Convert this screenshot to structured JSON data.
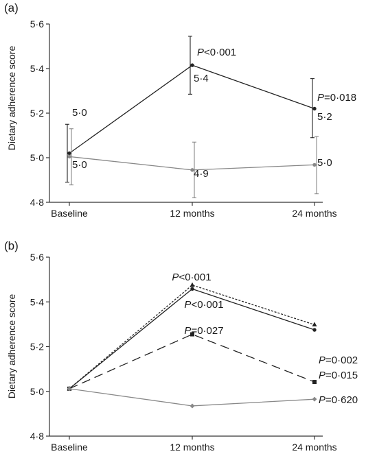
{
  "chart_data": [
    {
      "panel_label": "(a)",
      "type": "line",
      "ylabel": "Dietary adherence score",
      "categories": [
        "Baseline",
        "12 months",
        "24 months"
      ],
      "yticks": [
        "4·8",
        "5·0",
        "5·2",
        "5·4",
        "5·6"
      ],
      "ylim": [
        4.8,
        5.6
      ],
      "series": [
        {
          "values": [
            5.02,
            5.415,
            5.22
          ],
          "err_low": [
            4.89,
            5.285,
            5.09
          ],
          "err_high": [
            5.15,
            5.545,
            5.355
          ],
          "color": "#222222",
          "dash": "",
          "marker": "circle",
          "labels": [
            "5·0",
            "5·4",
            "5·2"
          ]
        },
        {
          "values": [
            5.005,
            4.945,
            4.968
          ],
          "err_low": [
            4.878,
            4.82,
            4.838
          ],
          "err_high": [
            5.13,
            5.07,
            5.095
          ],
          "color": "#888888",
          "dash": "",
          "marker": "circle",
          "labels": [
            "5·0",
            "4·9",
            "5·0"
          ]
        }
      ],
      "annotations": [
        "P<0·001",
        "P=0·018"
      ]
    },
    {
      "panel_label": "(b)",
      "type": "line",
      "ylabel": "Dietary adherence score",
      "categories": [
        "Baseline",
        "12 months",
        "24 months"
      ],
      "yticks": [
        "4·8",
        "5·0",
        "5·2",
        "5·4",
        "5·6"
      ],
      "ylim": [
        4.8,
        5.6
      ],
      "series": [
        {
          "values": [
            5.012,
            5.475,
            5.298
          ],
          "color": "#222222",
          "dash": "3,2",
          "marker": "triangle"
        },
        {
          "values": [
            5.012,
            5.458,
            5.275
          ],
          "color": "#222222",
          "dash": "",
          "marker": "circle"
        },
        {
          "values": [
            5.012,
            5.255,
            5.042
          ],
          "color": "#222222",
          "dash": "13,7",
          "marker": "square"
        },
        {
          "values": [
            5.012,
            4.935,
            4.965
          ],
          "color": "#888888",
          "dash": "",
          "marker": "diamond"
        }
      ],
      "annotations": [
        "P<0·001",
        "P<0·001",
        "P=0·027",
        "P=0·002",
        "P=0·015",
        "P=0·620"
      ]
    }
  ]
}
